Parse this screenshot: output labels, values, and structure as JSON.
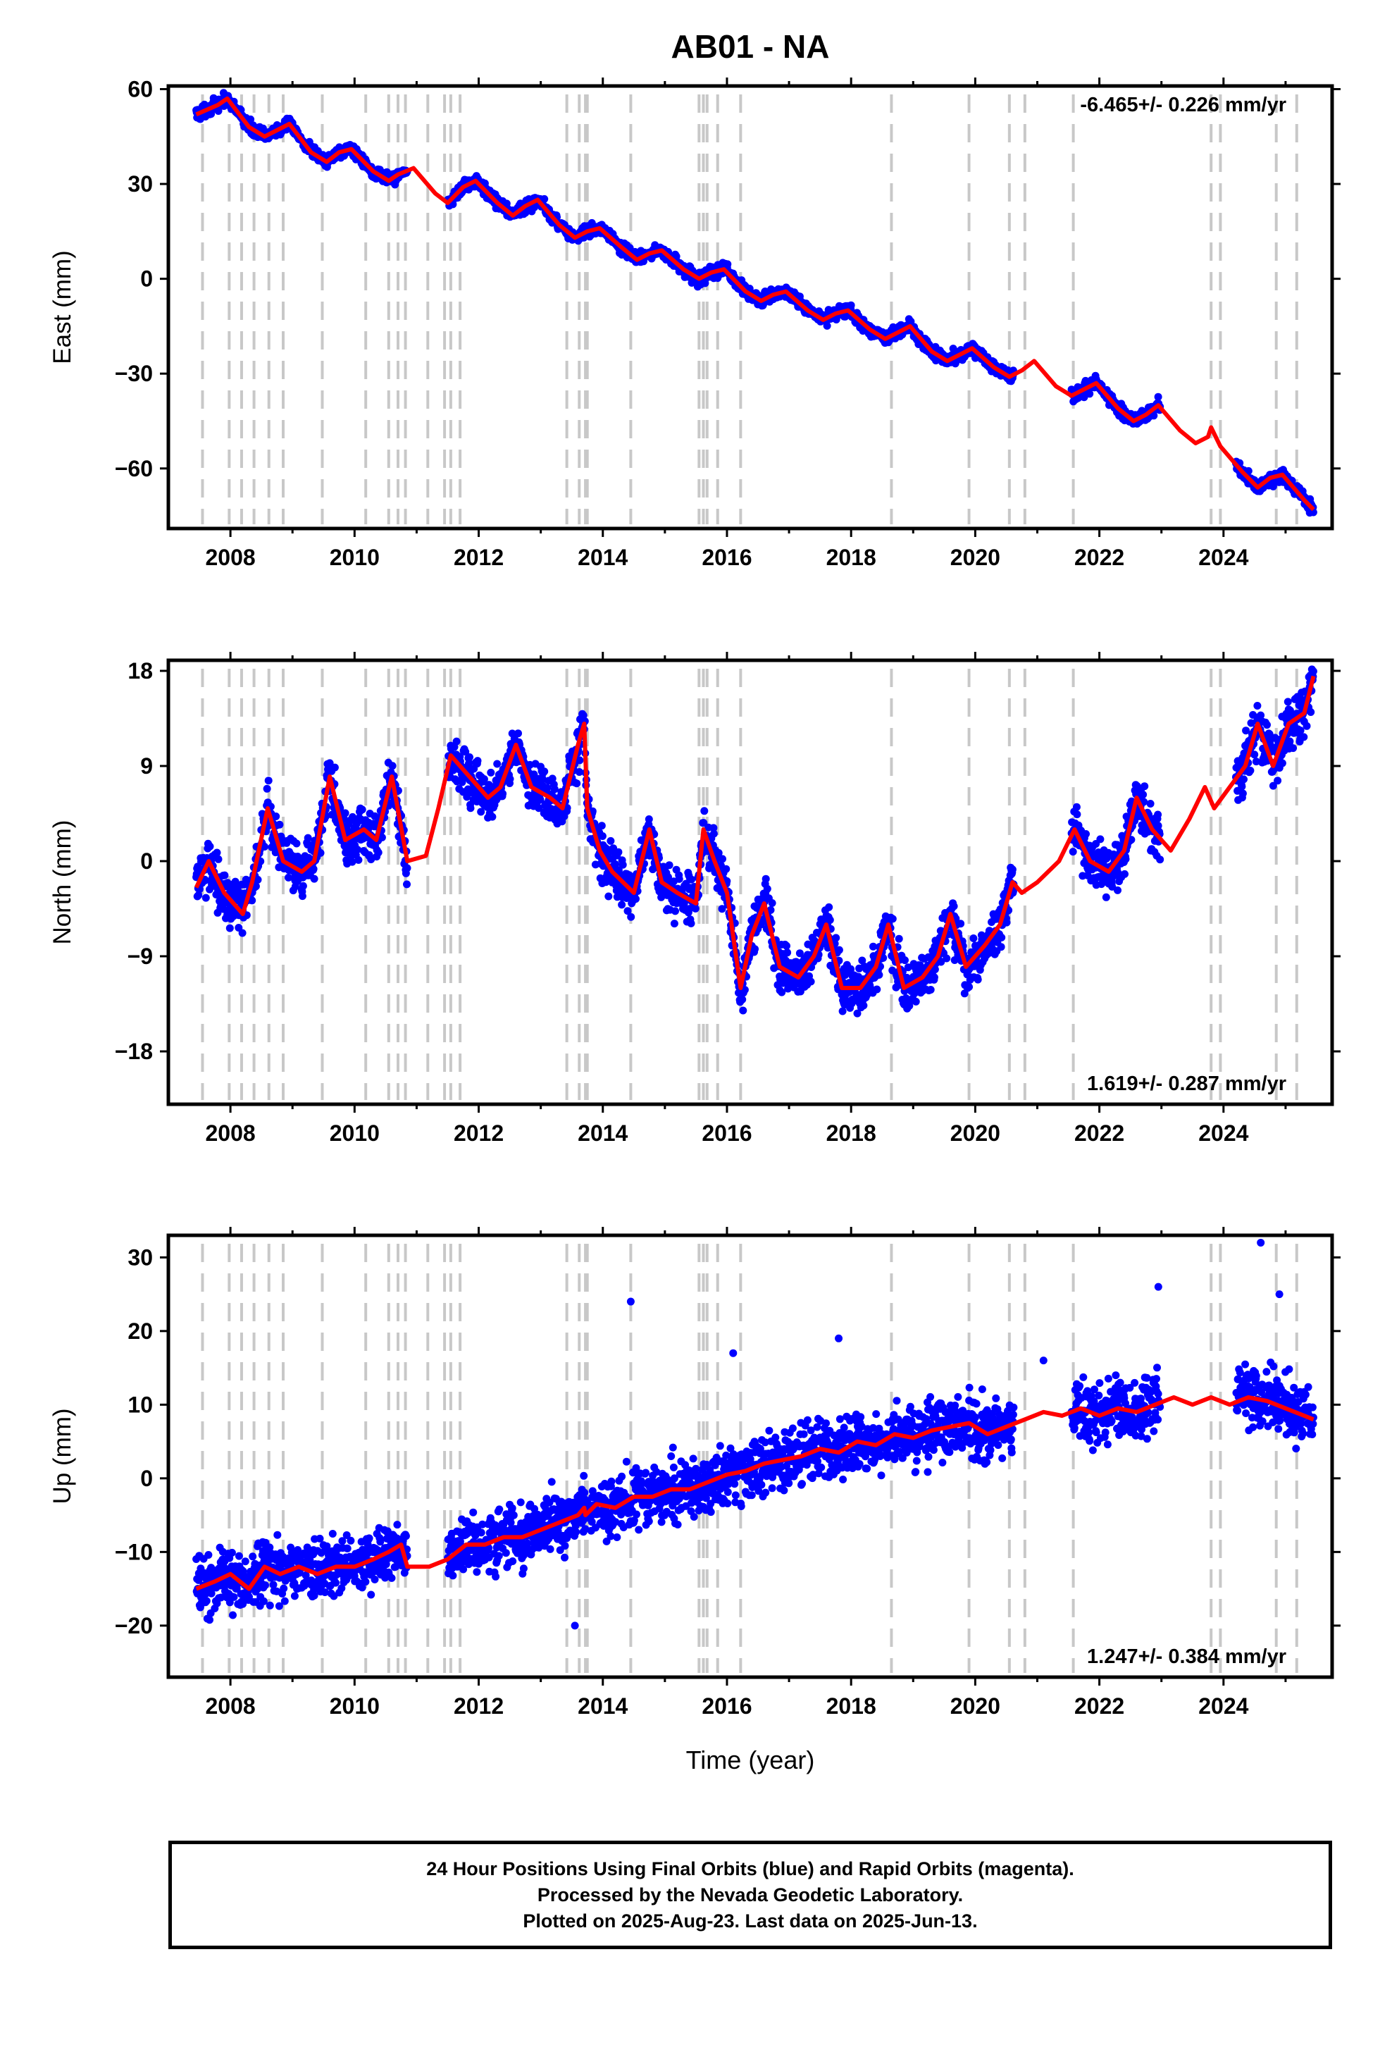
{
  "title": "AB01 - NA",
  "xlabel": "Time (year)",
  "x_tick_labels": [
    "2008",
    "2010",
    "2012",
    "2014",
    "2016",
    "2018",
    "2020",
    "2022",
    "2024"
  ],
  "colors": {
    "points": "#0000ff",
    "model": "#ff0000",
    "breaks": "#c8c8c8",
    "frame": "#000000"
  },
  "breaks": [
    2007.55,
    2007.98,
    2008.18,
    2008.38,
    2008.62,
    2008.85,
    2009.48,
    2010.18,
    2010.55,
    2010.7,
    2010.82,
    2011.18,
    2011.45,
    2011.55,
    2011.7,
    2013.42,
    2013.62,
    2013.72,
    2013.75,
    2014.45,
    2015.55,
    2015.62,
    2015.68,
    2015.85,
    2016.22,
    2018.65,
    2019.9,
    2020.55,
    2020.8,
    2021.58,
    2023.8,
    2023.95,
    2024.85,
    2025.18
  ],
  "chart_data": [
    {
      "type": "scatter",
      "panel": "east",
      "ylabel": "East (mm)",
      "y_tick_labels": [
        "60",
        "30",
        "0",
        "−30",
        "−60"
      ],
      "ylim": [
        -79,
        61
      ],
      "xlim": [
        2007.0,
        2025.75
      ],
      "rate_label": "-6.465+/- 0.226 mm/yr",
      "rate_position": "top-right",
      "series": [
        {
          "kind": "model",
          "x": [
            2007.45,
            2007.8,
            2007.95,
            2008.3,
            2008.55,
            2008.75,
            2008.95,
            2009.3,
            2009.55,
            2009.75,
            2009.95,
            2010.3,
            2010.55,
            2010.7,
            2010.95,
            2011.3,
            2011.5,
            2011.75,
            2011.95,
            2012.3,
            2012.55,
            2012.75,
            2012.95,
            2013.3,
            2013.55,
            2013.75,
            2013.95,
            2014.3,
            2014.55,
            2014.75,
            2014.95,
            2015.3,
            2015.55,
            2015.75,
            2015.95,
            2016.3,
            2016.55,
            2016.75,
            2016.95,
            2017.3,
            2017.55,
            2017.75,
            2017.95,
            2018.3,
            2018.55,
            2018.75,
            2018.95,
            2019.3,
            2019.55,
            2019.75,
            2019.95,
            2020.3,
            2020.55,
            2020.75,
            2020.95,
            2021.3,
            2021.55,
            2021.75,
            2021.95,
            2022.3,
            2022.55,
            2022.75,
            2022.95,
            2023.3,
            2023.55,
            2023.75,
            2023.8,
            2023.95,
            2024.3,
            2024.55,
            2024.75,
            2024.95,
            2025.3,
            2025.45
          ],
          "y": [
            52,
            55,
            57,
            48,
            45,
            47,
            49,
            40,
            37,
            40,
            41,
            34,
            31,
            33,
            35,
            27,
            24,
            29,
            31,
            24,
            20,
            23,
            25,
            17,
            13,
            15,
            16,
            10,
            6,
            8,
            9,
            3,
            0,
            2,
            3,
            -4,
            -7,
            -5,
            -4,
            -10,
            -13,
            -11,
            -10,
            -16,
            -19,
            -17,
            -15,
            -23,
            -26,
            -24,
            -22,
            -28,
            -31,
            -29,
            -26,
            -34,
            -37,
            -35,
            -33,
            -41,
            -45,
            -43,
            -40,
            -48,
            -52,
            -50,
            -47,
            -53,
            -61,
            -66,
            -63,
            -62,
            -70,
            -73
          ]
        }
      ]
    },
    {
      "type": "scatter",
      "panel": "north",
      "ylabel": "North (mm)",
      "y_tick_labels": [
        "18",
        "9",
        "0",
        "−9",
        "−18"
      ],
      "ylim": [
        -23,
        19
      ],
      "xlim": [
        2007.0,
        2025.75
      ],
      "rate_label": "1.619+/- 0.287 mm/yr",
      "rate_position": "bottom-right",
      "series": [
        {
          "kind": "model",
          "x": [
            2007.45,
            2007.65,
            2007.9,
            2008.2,
            2008.35,
            2008.6,
            2008.85,
            2009.15,
            2009.35,
            2009.6,
            2009.85,
            2010.15,
            2010.35,
            2010.6,
            2010.85,
            2011.15,
            2011.35,
            2011.55,
            2011.85,
            2012.15,
            2012.35,
            2012.6,
            2012.85,
            2013.15,
            2013.35,
            2013.6,
            2013.7,
            2013.75,
            2013.95,
            2014.15,
            2014.5,
            2014.75,
            2014.95,
            2015.2,
            2015.5,
            2015.62,
            2015.8,
            2016.0,
            2016.22,
            2016.4,
            2016.6,
            2016.85,
            2017.15,
            2017.4,
            2017.6,
            2017.85,
            2018.15,
            2018.4,
            2018.6,
            2018.85,
            2019.15,
            2019.4,
            2019.6,
            2019.85,
            2020.15,
            2020.4,
            2020.6,
            2020.75,
            2021.0,
            2021.35,
            2021.6,
            2021.85,
            2022.15,
            2022.4,
            2022.6,
            2022.85,
            2023.15,
            2023.45,
            2023.7,
            2023.85,
            2024.1,
            2024.35,
            2024.55,
            2024.8,
            2025.05,
            2025.3,
            2025.45
          ],
          "y": [
            -2.5,
            0,
            -3,
            -5,
            -2,
            5,
            0,
            -1,
            0,
            8,
            2,
            3,
            2,
            8,
            0,
            0.5,
            5,
            10,
            8,
            6,
            7,
            11,
            7,
            6,
            5,
            11,
            13,
            5,
            1,
            -1,
            -3,
            3,
            -2,
            -3,
            -4,
            3,
            0,
            -3,
            -12,
            -7,
            -4,
            -10,
            -11,
            -9,
            -6,
            -12,
            -12,
            -10,
            -6,
            -12,
            -11,
            -9,
            -5,
            -10,
            -8,
            -6,
            -2,
            -3,
            -2,
            0,
            3,
            0,
            -1,
            1,
            6,
            3,
            1,
            4,
            7,
            5,
            7,
            9,
            13,
            9,
            13,
            14,
            17.5
          ]
        }
      ]
    },
    {
      "type": "scatter",
      "panel": "up",
      "ylabel": "Up (mm)",
      "y_tick_labels": [
        "30",
        "20",
        "10",
        "0",
        "−10",
        "−20"
      ],
      "ylim": [
        -27,
        33
      ],
      "xlim": [
        2007.0,
        2025.75
      ],
      "rate_label": "1.247+/- 0.384 mm/yr",
      "rate_position": "bottom-right",
      "series": [
        {
          "kind": "model",
          "x": [
            2007.45,
            2007.75,
            2008.0,
            2008.3,
            2008.55,
            2008.8,
            2009.1,
            2009.4,
            2009.7,
            2010.0,
            2010.3,
            2010.55,
            2010.75,
            2010.85,
            2011.2,
            2011.5,
            2011.8,
            2012.1,
            2012.4,
            2012.7,
            2013.0,
            2013.3,
            2013.6,
            2013.7,
            2013.72,
            2013.9,
            2014.2,
            2014.5,
            2014.8,
            2015.1,
            2015.4,
            2015.7,
            2016.0,
            2016.3,
            2016.6,
            2016.9,
            2017.2,
            2017.5,
            2017.8,
            2018.1,
            2018.4,
            2018.7,
            2019.0,
            2019.3,
            2019.6,
            2019.9,
            2020.2,
            2020.5,
            2020.8,
            2021.1,
            2021.4,
            2021.7,
            2022.0,
            2022.3,
            2022.6,
            2022.9,
            2023.2,
            2023.5,
            2023.8,
            2024.1,
            2024.4,
            2024.7,
            2025.0,
            2025.3,
            2025.45
          ],
          "y": [
            -15,
            -14,
            -13,
            -15,
            -12,
            -13,
            -12,
            -13,
            -12,
            -12,
            -11,
            -10,
            -9,
            -12,
            -12,
            -11,
            -9,
            -9,
            -8,
            -8,
            -7,
            -6,
            -5,
            -4,
            -5,
            -3.5,
            -4,
            -2.5,
            -2.5,
            -1.5,
            -1.5,
            -0.5,
            0.5,
            1,
            2,
            2.5,
            3,
            4,
            3.5,
            5,
            4.5,
            6,
            5.5,
            6.5,
            7,
            7.5,
            6,
            7,
            8,
            9,
            8.5,
            9.5,
            8.5,
            9.5,
            9,
            10,
            11,
            10,
            11,
            10,
            11,
            10.5,
            9.5,
            8.5,
            8
          ]
        },
        {
          "kind": "points",
          "x": [
            2013.55,
            2014.45,
            2016.1,
            2017.8,
            2021.1,
            2022.95,
            2024.6,
            2024.9
          ],
          "y": [
            -20,
            24,
            17,
            19,
            16,
            26,
            32,
            25
          ]
        }
      ]
    }
  ],
  "footer": {
    "line1": "24 Hour Positions Using Final Orbits (blue) and Rapid Orbits (magenta).",
    "line2": "Processed by the Nevada Geodetic Laboratory.",
    "line3": "Plotted on 2025-Aug-23. Last data on 2025-Jun-13."
  }
}
